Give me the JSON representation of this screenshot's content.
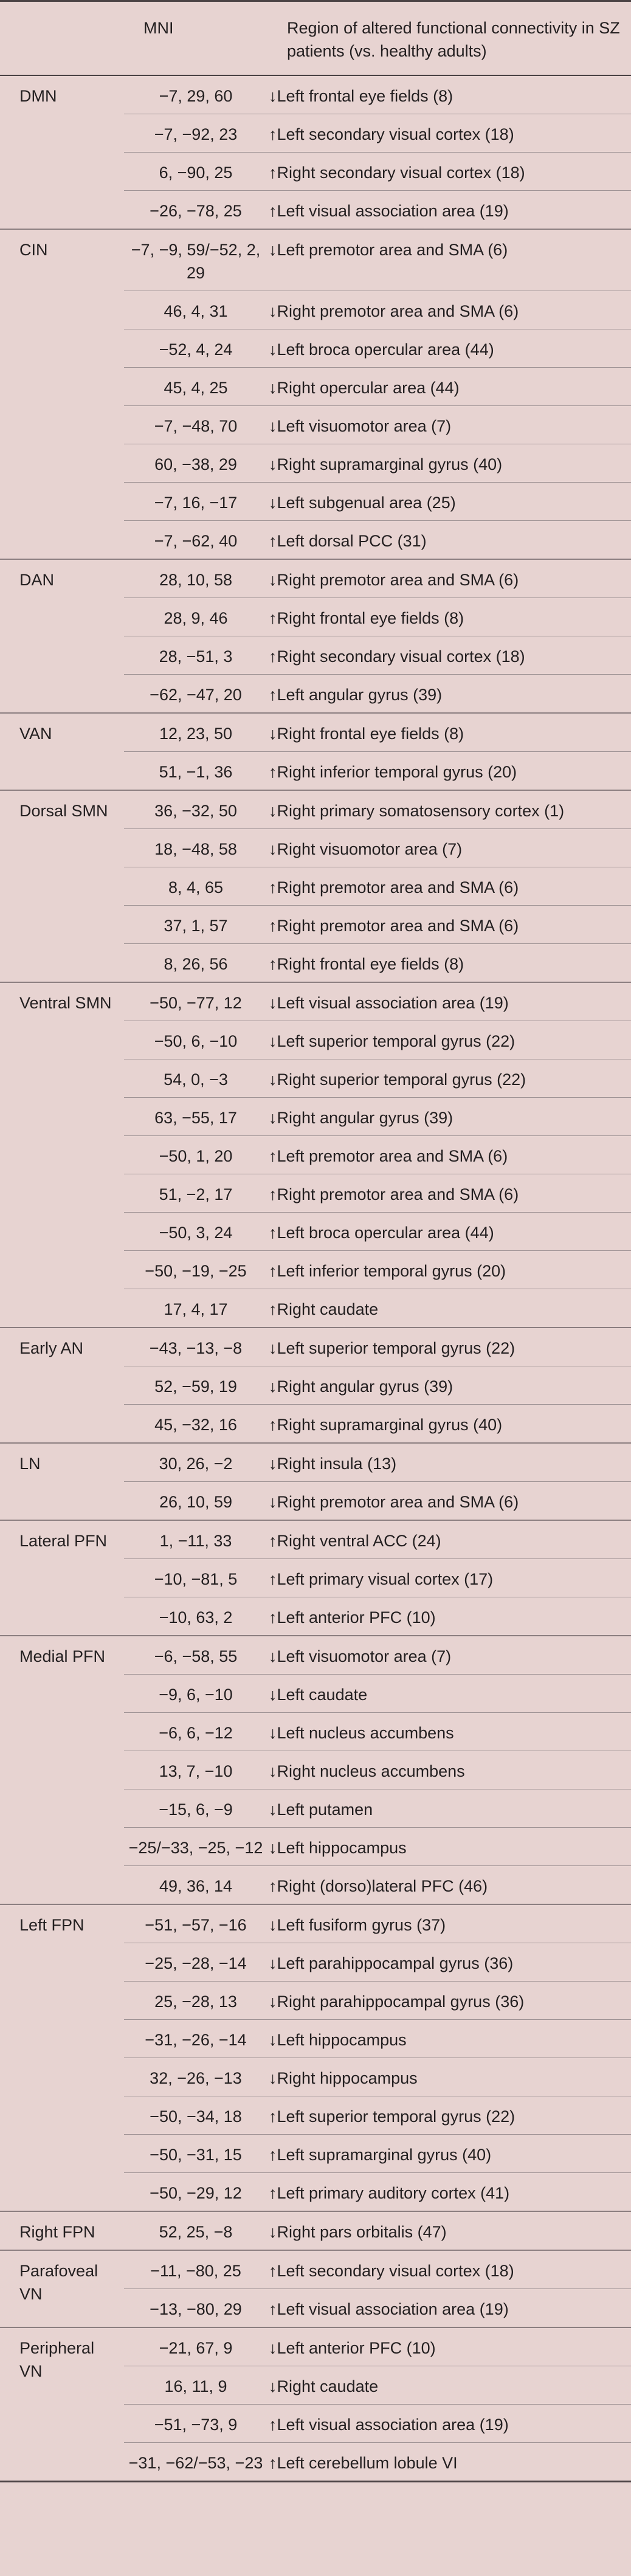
{
  "header": {
    "mni": "MNI",
    "region": "Region of altered functional connectivity in SZ patients (vs. healthy adults)"
  },
  "groups": [
    {
      "name": "DMN",
      "rows": [
        {
          "mni": "−7, 29, 60",
          "region": "↓Left frontal eye fields (8)"
        },
        {
          "mni": "−7, −92, 23",
          "region": "↑Left secondary visual cortex (18)"
        },
        {
          "mni": "6, −90, 25",
          "region": "↑Right secondary visual cortex (18)"
        },
        {
          "mni": "−26, −78, 25",
          "region": "↑Left visual association area (19)"
        }
      ]
    },
    {
      "name": "CIN",
      "rows": [
        {
          "mni": "−7, −9, 59/−52, 2, 29",
          "region": "↓Left premotor area and SMA (6)"
        },
        {
          "mni": "46, 4, 31",
          "region": "↓Right premotor area and SMA (6)"
        },
        {
          "mni": "−52, 4, 24",
          "region": "↓Left broca opercular area (44)"
        },
        {
          "mni": "45, 4, 25",
          "region": "↓Right opercular area (44)"
        },
        {
          "mni": "−7, −48, 70",
          "region": "↓Left visuomotor area (7)"
        },
        {
          "mni": "60, −38, 29",
          "region": "↓Right supramarginal gyrus (40)"
        },
        {
          "mni": "−7, 16, −17",
          "region": "↓Left subgenual area (25)"
        },
        {
          "mni": "−7, −62, 40",
          "region": "↑Left dorsal PCC (31)"
        }
      ]
    },
    {
      "name": "DAN",
      "rows": [
        {
          "mni": "28, 10, 58",
          "region": "↓Right premotor area and SMA (6)"
        },
        {
          "mni": "28, 9, 46",
          "region": "↑Right frontal eye fields (8)"
        },
        {
          "mni": "28, −51, 3",
          "region": "↑Right secondary visual cortex (18)"
        },
        {
          "mni": "−62, −47, 20",
          "region": "↑Left angular gyrus (39)"
        }
      ]
    },
    {
      "name": "VAN",
      "rows": [
        {
          "mni": "12, 23, 50",
          "region": "↓Right frontal eye fields (8)"
        },
        {
          "mni": "51, −1, 36",
          "region": "↑Right inferior temporal gyrus (20)"
        }
      ]
    },
    {
      "name": "Dorsal SMN",
      "rows": [
        {
          "mni": "36, −32, 50",
          "region": "↓Right primary somatosensory cortex (1)"
        },
        {
          "mni": "18, −48, 58",
          "region": "↓Right visuomotor area (7)"
        },
        {
          "mni": "8, 4, 65",
          "region": "↑Right premotor area and SMA (6)"
        },
        {
          "mni": "37, 1, 57",
          "region": "↑Right premotor area and SMA (6)"
        },
        {
          "mni": "8, 26, 56",
          "region": "↑Right frontal eye fields (8)"
        }
      ]
    },
    {
      "name": "Ventral SMN",
      "rows": [
        {
          "mni": "−50, −77, 12",
          "region": "↓Left visual association area (19)"
        },
        {
          "mni": "−50, 6, −10",
          "region": "↓Left superior temporal gyrus (22)"
        },
        {
          "mni": "54, 0, −3",
          "region": "↓Right superior temporal gyrus (22)"
        },
        {
          "mni": "63, −55, 17",
          "region": "↓Right angular gyrus (39)"
        },
        {
          "mni": "−50, 1, 20",
          "region": "↑Left premotor area and SMA (6)"
        },
        {
          "mni": "51, −2, 17",
          "region": "↑Right premotor area and SMA (6)"
        },
        {
          "mni": "−50, 3, 24",
          "region": "↑Left broca opercular area (44)"
        },
        {
          "mni": "−50, −19, −25",
          "region": "↑Left inferior temporal gyrus (20)"
        },
        {
          "mni": "17, 4, 17",
          "region": "↑Right caudate"
        }
      ]
    },
    {
      "name": "Early AN",
      "rows": [
        {
          "mni": "−43, −13, −8",
          "region": "↓Left superior temporal gyrus (22)"
        },
        {
          "mni": "52, −59, 19",
          "region": "↓Right angular gyrus (39)"
        },
        {
          "mni": "45, −32, 16",
          "region": "↑Right supramarginal gyrus (40)"
        }
      ]
    },
    {
      "name": "LN",
      "rows": [
        {
          "mni": "30, 26, −2",
          "region": "↓Right insula (13)"
        },
        {
          "mni": "26, 10, 59",
          "region": "↓Right premotor area and SMA (6)"
        }
      ]
    },
    {
      "name": "Lateral PFN",
      "rows": [
        {
          "mni": "1, −11, 33",
          "region": "↑Right ventral ACC (24)"
        },
        {
          "mni": "−10, −81, 5",
          "region": "↑Left primary visual cortex (17)"
        },
        {
          "mni": "−10, 63, 2",
          "region": "↑Left anterior PFC (10)"
        }
      ]
    },
    {
      "name": "Medial PFN",
      "rows": [
        {
          "mni": "−6, −58, 55",
          "region": "↓Left visuomotor area (7)"
        },
        {
          "mni": "−9, 6, −10",
          "region": "↓Left caudate"
        },
        {
          "mni": "−6, 6, −12",
          "region": "↓Left nucleus accumbens"
        },
        {
          "mni": "13, 7, −10",
          "region": "↓Right nucleus accumbens"
        },
        {
          "mni": "−15, 6, −9",
          "region": "↓Left putamen"
        },
        {
          "mni": "−25/−33, −25, −12",
          "region": "↓Left hippocampus"
        },
        {
          "mni": "49, 36, 14",
          "region": "↑Right (dorso)lateral PFC (46)"
        }
      ]
    },
    {
      "name": "Left FPN",
      "rows": [
        {
          "mni": "−51, −57, −16",
          "region": "↓Left fusiform gyrus (37)"
        },
        {
          "mni": "−25, −28, −14",
          "region": "↓Left parahippocampal gyrus (36)"
        },
        {
          "mni": "25, −28, 13",
          "region": "↓Right parahippocampal gyrus (36)"
        },
        {
          "mni": "−31, −26, −14",
          "region": "↓Left hippocampus"
        },
        {
          "mni": "32, −26, −13",
          "region": "↓Right hippocampus"
        },
        {
          "mni": "−50, −34, 18",
          "region": "↑Left superior temporal gyrus (22)"
        },
        {
          "mni": "−50, −31, 15",
          "region": "↑Left supramarginal gyrus (40)"
        },
        {
          "mni": "−50, −29, 12",
          "region": "↑Left primary auditory cortex (41)"
        }
      ]
    },
    {
      "name": "Right FPN",
      "rows": [
        {
          "mni": "52, 25, −8",
          "region": "↓Right pars orbitalis (47)"
        }
      ]
    },
    {
      "name": "Parafoveal VN",
      "rows": [
        {
          "mni": "−11, −80, 25",
          "region": "↑Left secondary visual cortex (18)"
        },
        {
          "mni": "−13, −80, 29",
          "region": "↑Left visual association area (19)"
        }
      ]
    },
    {
      "name": "Peripheral VN",
      "rows": [
        {
          "mni": "−21, 67, 9",
          "region": "↓Left anterior PFC (10)"
        },
        {
          "mni": "16, 11, 9",
          "region": "↓Right caudate"
        },
        {
          "mni": "−51, −73, 9",
          "region": "↑Left visual association area (19)"
        },
        {
          "mni": "−31, −62/−53, −23",
          "region": "↑Left cerebellum lobule VI"
        }
      ]
    }
  ]
}
